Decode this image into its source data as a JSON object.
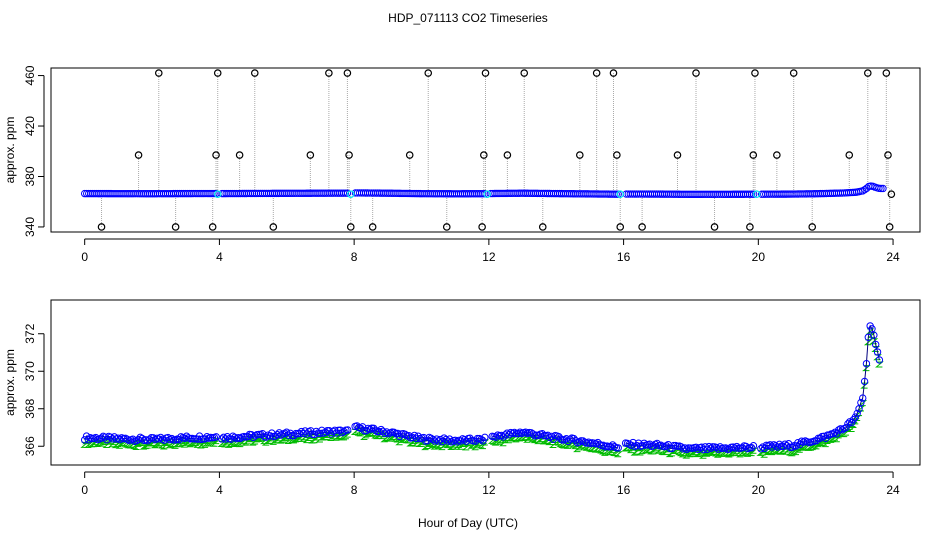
{
  "figure": {
    "title": "HDP_071113  CO2 Timeseries",
    "xlabel": "Hour of Day (UTC)"
  },
  "colors": {
    "axis": "#000000",
    "series_blue": "#0000ff",
    "series_green": "#00bb00",
    "line_dark": "#000080",
    "flag_black": "#000000",
    "dropline": "#aaaaaa",
    "cyan": "#00e5ee"
  },
  "chart_data": [
    {
      "type": "scatter",
      "panel": "top",
      "title": "",
      "xlabel": "",
      "ylabel": "approx. ppm",
      "xlim": [
        -1.0,
        24.8
      ],
      "ylim": [
        336,
        466
      ],
      "xticks": [
        0,
        4,
        8,
        12,
        16,
        20,
        24
      ],
      "yticks": [
        340,
        380,
        420,
        460
      ],
      "grid": false,
      "flag_levels": {
        "low": 340,
        "mid": 397,
        "high": 462
      },
      "flag_points": [
        {
          "x": 0.5,
          "y": 340
        },
        {
          "x": 1.6,
          "y": 397
        },
        {
          "x": 2.2,
          "y": 462
        },
        {
          "x": 2.7,
          "y": 340
        },
        {
          "x": 3.8,
          "y": 340
        },
        {
          "x": 3.9,
          "y": 397
        },
        {
          "x": 3.95,
          "y": 462
        },
        {
          "x": 4.6,
          "y": 397
        },
        {
          "x": 5.05,
          "y": 462
        },
        {
          "x": 5.6,
          "y": 340
        },
        {
          "x": 6.7,
          "y": 397
        },
        {
          "x": 7.25,
          "y": 462
        },
        {
          "x": 7.8,
          "y": 462
        },
        {
          "x": 7.85,
          "y": 397
        },
        {
          "x": 7.9,
          "y": 340
        },
        {
          "x": 8.55,
          "y": 340
        },
        {
          "x": 9.65,
          "y": 397
        },
        {
          "x": 10.2,
          "y": 462
        },
        {
          "x": 10.75,
          "y": 340
        },
        {
          "x": 11.8,
          "y": 340
        },
        {
          "x": 11.85,
          "y": 397
        },
        {
          "x": 11.9,
          "y": 462
        },
        {
          "x": 12.55,
          "y": 397
        },
        {
          "x": 13.05,
          "y": 462
        },
        {
          "x": 13.6,
          "y": 340
        },
        {
          "x": 14.7,
          "y": 397
        },
        {
          "x": 15.2,
          "y": 462
        },
        {
          "x": 15.7,
          "y": 462
        },
        {
          "x": 15.8,
          "y": 397
        },
        {
          "x": 15.9,
          "y": 340
        },
        {
          "x": 16.55,
          "y": 340
        },
        {
          "x": 17.6,
          "y": 397
        },
        {
          "x": 18.15,
          "y": 462
        },
        {
          "x": 18.7,
          "y": 340
        },
        {
          "x": 19.75,
          "y": 340
        },
        {
          "x": 19.85,
          "y": 397
        },
        {
          "x": 19.9,
          "y": 462
        },
        {
          "x": 20.55,
          "y": 397
        },
        {
          "x": 21.05,
          "y": 462
        },
        {
          "x": 21.6,
          "y": 340
        },
        {
          "x": 22.7,
          "y": 397
        },
        {
          "x": 23.25,
          "y": 462
        },
        {
          "x": 23.8,
          "y": 462
        },
        {
          "x": 23.85,
          "y": 397
        },
        {
          "x": 23.9,
          "y": 340
        },
        {
          "x": 23.95,
          "y": 366
        }
      ],
      "baseline_note": "continuous CO2 near 366 ppm rising to ~373 after 23 UTC"
    },
    {
      "type": "scatter",
      "panel": "bottom",
      "title": "",
      "xlabel": "Hour of Day (UTC)",
      "ylabel": "approx. ppm",
      "xlim": [
        -1.0,
        24.8
      ],
      "ylim": [
        365.0,
        373.8
      ],
      "xticks": [
        0,
        4,
        8,
        12,
        16,
        20,
        24
      ],
      "yticks": [
        366,
        368,
        370,
        372
      ],
      "grid": false,
      "gaps": [
        [
          3.95,
          4.05
        ],
        [
          7.85,
          8.0
        ],
        [
          11.9,
          12.05
        ],
        [
          15.85,
          16.05
        ],
        [
          19.9,
          20.05
        ]
      ],
      "series": [
        {
          "name": "blue",
          "points": [
            {
              "x": 0.0,
              "y": 366.45
            },
            {
              "x": 1.0,
              "y": 366.4
            },
            {
              "x": 2.0,
              "y": 366.35
            },
            {
              "x": 3.0,
              "y": 366.45
            },
            {
              "x": 3.9,
              "y": 366.5
            },
            {
              "x": 4.1,
              "y": 366.45
            },
            {
              "x": 5.0,
              "y": 366.55
            },
            {
              "x": 6.0,
              "y": 366.65
            },
            {
              "x": 7.0,
              "y": 366.75
            },
            {
              "x": 7.8,
              "y": 366.8
            },
            {
              "x": 8.05,
              "y": 367.0
            },
            {
              "x": 9.0,
              "y": 366.75
            },
            {
              "x": 10.0,
              "y": 366.4
            },
            {
              "x": 11.0,
              "y": 366.3
            },
            {
              "x": 11.85,
              "y": 366.35
            },
            {
              "x": 12.1,
              "y": 366.5
            },
            {
              "x": 13.0,
              "y": 366.75
            },
            {
              "x": 14.0,
              "y": 366.45
            },
            {
              "x": 15.0,
              "y": 366.2
            },
            {
              "x": 15.8,
              "y": 365.95
            },
            {
              "x": 16.1,
              "y": 366.1
            },
            {
              "x": 17.0,
              "y": 366.05
            },
            {
              "x": 18.0,
              "y": 365.85
            },
            {
              "x": 19.0,
              "y": 365.9
            },
            {
              "x": 19.85,
              "y": 365.95
            },
            {
              "x": 20.1,
              "y": 365.95
            },
            {
              "x": 21.0,
              "y": 366.05
            },
            {
              "x": 21.5,
              "y": 366.25
            },
            {
              "x": 22.0,
              "y": 366.5
            },
            {
              "x": 22.5,
              "y": 366.9
            },
            {
              "x": 22.9,
              "y": 367.5
            },
            {
              "x": 23.1,
              "y": 368.6
            },
            {
              "x": 23.2,
              "y": 370.2
            },
            {
              "x": 23.3,
              "y": 372.6
            },
            {
              "x": 23.4,
              "y": 372.2
            },
            {
              "x": 23.5,
              "y": 371.2
            },
            {
              "x": 23.6,
              "y": 370.5
            }
          ]
        },
        {
          "name": "green",
          "offset_below_blue_ppm": 0.28
        }
      ]
    }
  ]
}
